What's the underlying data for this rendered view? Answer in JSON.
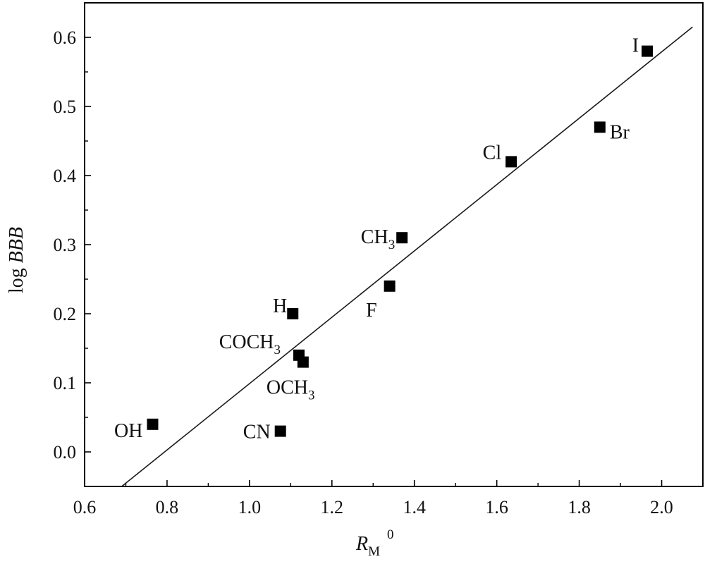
{
  "chart_data": {
    "type": "scatter",
    "xlabel": {
      "main": "R",
      "sub": "M",
      "sup": "0"
    },
    "ylabel": {
      "prefix": "log ",
      "italic": "BBB"
    },
    "xlim": [
      0.6,
      2.1
    ],
    "ylim": [
      -0.05,
      0.65
    ],
    "xticks": [
      "0.6",
      "0.8",
      "1.0",
      "1.2",
      "1.4",
      "1.6",
      "1.8",
      "2.0"
    ],
    "yticks": [
      "0.0",
      "0.1",
      "0.2",
      "0.3",
      "0.4",
      "0.5",
      "0.6"
    ],
    "grid": false,
    "legend": "none",
    "points": [
      {
        "label": "OH",
        "label_sub": "",
        "x": 0.765,
        "y": 0.04
      },
      {
        "label": "CN",
        "label_sub": "",
        "x": 1.075,
        "y": 0.03
      },
      {
        "label": "H",
        "label_sub": "",
        "x": 1.105,
        "y": 0.2
      },
      {
        "label": "COCH",
        "label_sub": "3",
        "x": 1.12,
        "y": 0.14
      },
      {
        "label": "OCH",
        "label_sub": "3",
        "x": 1.13,
        "y": 0.13
      },
      {
        "label": "F",
        "label_sub": "",
        "x": 1.34,
        "y": 0.24
      },
      {
        "label": "CH",
        "label_sub": "3",
        "x": 1.37,
        "y": 0.31
      },
      {
        "label": "Cl",
        "label_sub": "",
        "x": 1.635,
        "y": 0.42
      },
      {
        "label": "Br",
        "label_sub": "",
        "x": 1.85,
        "y": 0.47
      },
      {
        "label": "I",
        "label_sub": "",
        "x": 1.965,
        "y": 0.58
      }
    ],
    "fit_line": {
      "x": [
        0.69,
        2.075
      ],
      "y": [
        -0.05,
        0.615
      ]
    },
    "marker_color": "#000000",
    "line_color": "#1a1a1a"
  }
}
